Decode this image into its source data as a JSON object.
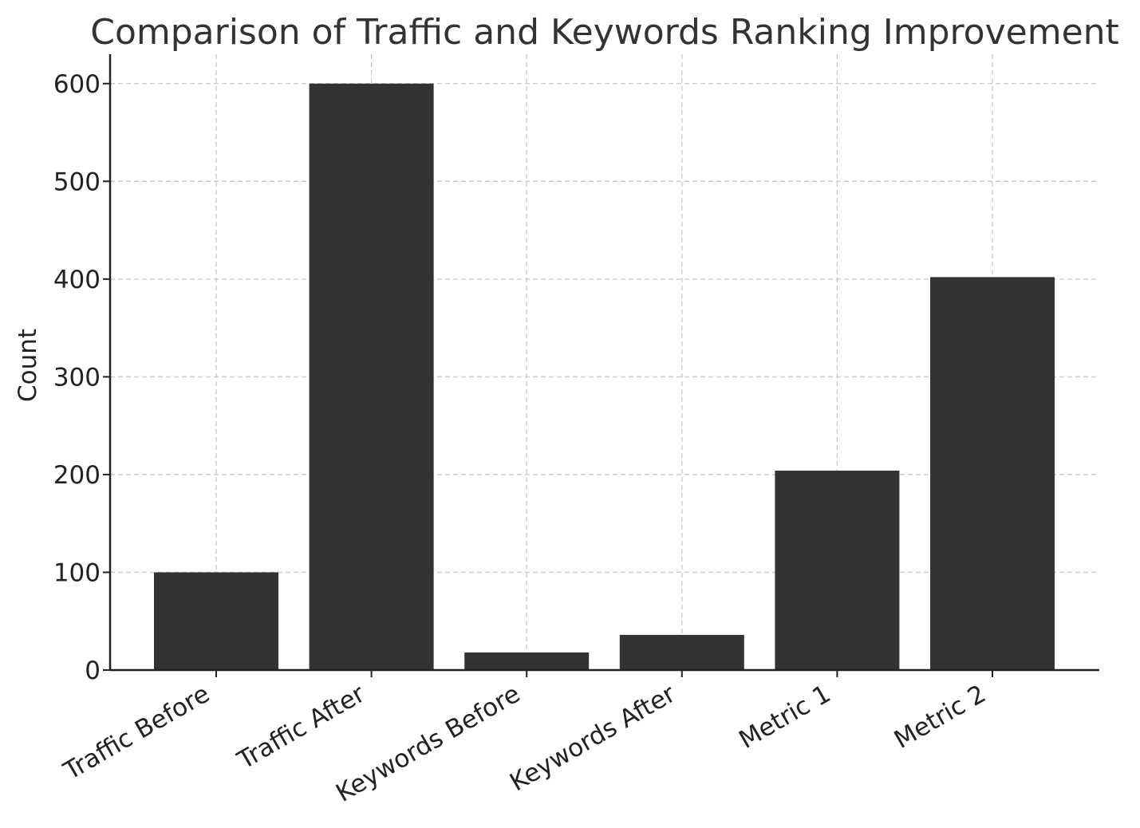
{
  "chart_data": {
    "type": "bar",
    "title": "Comparison of Traffic and Keywords Ranking Improvement",
    "xlabel": "",
    "ylabel": "Count",
    "categories": [
      "Traffic Before",
      "Traffic After",
      "Keywords Before",
      "Keywords After",
      "Metric 1",
      "Metric 2"
    ],
    "values": [
      100,
      600,
      18,
      36,
      204,
      402
    ],
    "ylim": [
      0,
      630
    ],
    "yticks": [
      0,
      100,
      200,
      300,
      400,
      500,
      600
    ],
    "grid": true,
    "bar_color": "#333333",
    "legend": "none"
  }
}
